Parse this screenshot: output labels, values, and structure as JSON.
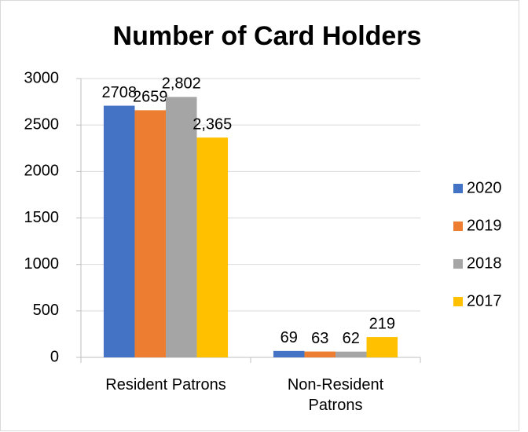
{
  "chart_data": {
    "type": "bar",
    "title": "Number of Card Holders",
    "categories": [
      "Resident Patrons",
      "Non-Resident Patrons"
    ],
    "series": [
      {
        "name": "2020",
        "color": "#4472c4",
        "values": [
          2708,
          69
        ]
      },
      {
        "name": "2019",
        "color": "#ed7d31",
        "values": [
          2659,
          63
        ]
      },
      {
        "name": "2018",
        "color": "#a5a5a5",
        "values": [
          2802,
          62
        ],
        "value_labels": [
          "2,802",
          "62"
        ]
      },
      {
        "name": "2017",
        "color": "#ffc000",
        "values": [
          2365,
          219
        ],
        "value_labels": [
          "2,365",
          "219"
        ]
      }
    ],
    "ylim": [
      0,
      3000
    ],
    "yticks": [
      0,
      500,
      1000,
      1500,
      2000,
      2500,
      3000
    ],
    "grid": true,
    "legend": "right"
  }
}
